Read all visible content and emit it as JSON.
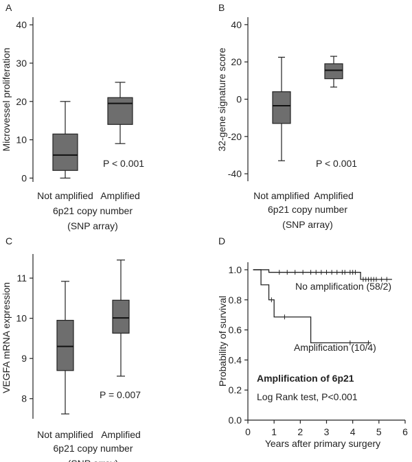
{
  "chart_data": [
    {
      "panel": "A",
      "type": "box",
      "categories": [
        "Not amplified",
        "Amplified"
      ],
      "boxes": [
        {
          "min": 0,
          "q1": 2,
          "median": 6,
          "q3": 11.5,
          "max": 20
        },
        {
          "min": 9,
          "q1": 14,
          "median": 19.5,
          "q3": 21,
          "max": 25
        }
      ],
      "ylabel": "Microvessel proliferation",
      "xlabel_lines": [
        "6p21 copy number",
        "(SNP array)"
      ],
      "ylim": [
        -1,
        42
      ],
      "yticks": [
        0,
        10,
        20,
        30,
        40
      ],
      "annotation": "P < 0.001",
      "box_color": "#6e6e6e"
    },
    {
      "panel": "B",
      "type": "box",
      "categories": [
        "Not amplified",
        "Amplified"
      ],
      "boxes": [
        {
          "min": -33,
          "q1": -13,
          "median": -3.5,
          "q3": 4,
          "max": 22.5
        },
        {
          "min": 6.5,
          "q1": 11,
          "median": 15.5,
          "q3": 19,
          "max": 23
        }
      ],
      "ylabel": "32-gene signature score",
      "xlabel_lines": [
        "6p21 copy number",
        "(SNP array)"
      ],
      "ylim": [
        -44,
        44
      ],
      "yticks": [
        -40,
        -20,
        0,
        20,
        40
      ],
      "annotation": "P < 0.001",
      "box_color": "#6e6e6e"
    },
    {
      "panel": "C",
      "type": "box",
      "categories": [
        "Not amplified",
        "Amplified"
      ],
      "boxes": [
        {
          "min": 7.62,
          "q1": 8.7,
          "median": 9.3,
          "q3": 9.95,
          "max": 10.92
        },
        {
          "min": 8.56,
          "q1": 9.63,
          "median": 10.01,
          "q3": 10.45,
          "max": 11.45
        }
      ],
      "ylabel": "VEGFA mRNA expression",
      "xlabel_lines": [
        "6p21 copy number",
        "(SNP array)"
      ],
      "ylim": [
        7.5,
        11.6
      ],
      "yticks": [
        8,
        9,
        10,
        11
      ],
      "annotation": "P = 0.007",
      "box_color": "#6e6e6e"
    },
    {
      "panel": "D",
      "type": "line",
      "step": true,
      "ylabel": "Probability of survival",
      "xlabel": "Years after primary surgery",
      "xlim": [
        0,
        6
      ],
      "ylim": [
        0,
        1.05
      ],
      "xticks": [
        0,
        1,
        2,
        3,
        4,
        5,
        6
      ],
      "yticks": [
        "0.0",
        "0.2",
        "0.4",
        "0.6",
        "0.8",
        "1.0"
      ],
      "series": [
        {
          "name": "No amplification (58/2)",
          "x": [
            0.2,
            0.8,
            4.2,
            4.3,
            5.5
          ],
          "y": [
            1.0,
            0.983,
            0.983,
            0.936,
            0.936
          ],
          "censored": [
            [
              1.2,
              0.983
            ],
            [
              1.5,
              0.983
            ],
            [
              1.8,
              0.983
            ],
            [
              2.1,
              0.983
            ],
            [
              2.4,
              0.983
            ],
            [
              2.6,
              0.983
            ],
            [
              2.8,
              0.983
            ],
            [
              3.0,
              0.983
            ],
            [
              3.2,
              0.983
            ],
            [
              3.4,
              0.983
            ],
            [
              3.6,
              0.983
            ],
            [
              3.7,
              0.983
            ],
            [
              3.9,
              0.983
            ],
            [
              4.0,
              0.983
            ],
            [
              4.1,
              0.983
            ],
            [
              4.4,
              0.936
            ],
            [
              4.5,
              0.936
            ],
            [
              4.6,
              0.936
            ],
            [
              4.7,
              0.936
            ],
            [
              4.8,
              0.936
            ],
            [
              4.9,
              0.936
            ],
            [
              5.1,
              0.936
            ],
            [
              5.3,
              0.936
            ]
          ]
        },
        {
          "name": "Amplification (10/4)",
          "x": [
            0.2,
            0.5,
            0.8,
            1.0,
            2.4,
            4.7
          ],
          "y": [
            1.0,
            0.9,
            0.8,
            0.686,
            0.514,
            0.514
          ],
          "censored": [
            [
              0.9,
              0.8
            ],
            [
              1.4,
              0.686
            ],
            [
              3.9,
              0.514
            ],
            [
              4.6,
              0.514
            ]
          ]
        }
      ],
      "annotations": [
        "Amplification of 6p21",
        "Log Rank test, P<0.001"
      ]
    }
  ]
}
